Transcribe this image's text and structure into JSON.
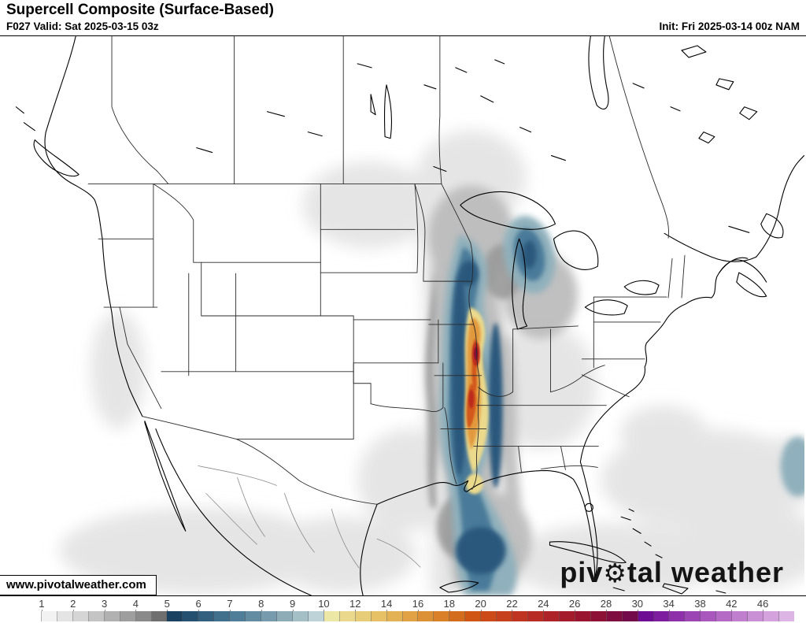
{
  "header": {
    "title": "Supercell Composite (Surface-Based)",
    "valid": "F027 Valid: Sat 2025-03-15 03z",
    "init": "Init: Fri 2025-03-14 00z NAM"
  },
  "map": {
    "attribution": "www.pivotalweather.com",
    "logo": {
      "part1": "piv",
      "gear_icon": "⚙",
      "part2": "tal weather"
    }
  },
  "overlay": {
    "gray_light": "#e4e4e4",
    "gray_mid": "#bababa",
    "gray_dark": "#989898",
    "blue_pale": "#8fb0bc",
    "blue": "#497a99",
    "blue_dark": "#2b587d",
    "yellow": "#ecda8c",
    "orange": "#e2993d",
    "orange_deep": "#d2591a",
    "red": "#bb2a1f",
    "maroon": "#8c1033"
  },
  "colorbar": {
    "labels": [
      1,
      2,
      3,
      4,
      5,
      6,
      7,
      8,
      9,
      10,
      12,
      14,
      16,
      18,
      20,
      22,
      24,
      26,
      28,
      30,
      34,
      38,
      42,
      46
    ],
    "start_value": 0.5,
    "colors": [
      "#ffffff",
      "#f2f2f2",
      "#e4e4e4",
      "#d5d5d5",
      "#c4c4c4",
      "#b1b1b1",
      "#9e9e9e",
      "#8a8a8a",
      "#6f6f6f",
      "#1b4161",
      "#25506f",
      "#32607e",
      "#41708c",
      "#507e98",
      "#638ca3",
      "#779aac",
      "#8dacb8",
      "#a4bfc6",
      "#bdd3d7",
      "#ede7a6",
      "#ead98c",
      "#e8cd78",
      "#e6c165",
      "#e3b254",
      "#e0a244",
      "#dd9136",
      "#d98029",
      "#d46c1e",
      "#cf5613",
      "#cb4a18",
      "#c6401d",
      "#bf3521",
      "#b72c25",
      "#ae2328",
      "#a41b2b",
      "#99142f",
      "#8d1036",
      "#800d3f",
      "#730a4a",
      "#6f0c94",
      "#7e1c9f",
      "#8d30aa",
      "#9b44b4",
      "#a957bd",
      "#b56bc6",
      "#c07ecf",
      "#ca90d6",
      "#d4a3dd",
      "#ddb5e4"
    ]
  }
}
